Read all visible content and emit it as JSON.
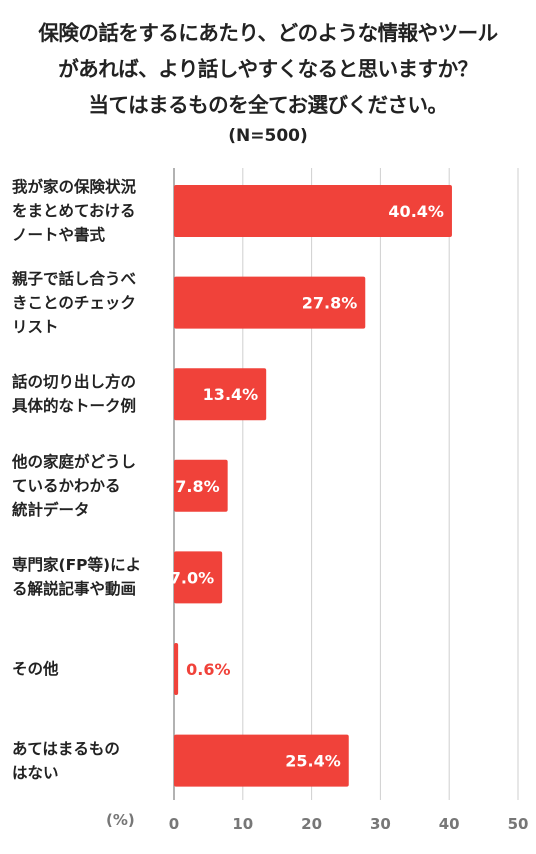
{
  "title_lines": [
    "保険の話をするにあたり、どのような情報やツール",
    "があれば、より話しやすくなると思いますか？",
    "当てはまるものを全てお選びください。"
  ],
  "subtitle": "(N=500)",
  "unit_label": "(%)",
  "colors": {
    "bar": "#f0423a",
    "grid": "#cfcfcf",
    "axis_text": "#777777"
  },
  "chart_data": {
    "type": "bar",
    "orientation": "horizontal",
    "categories": [
      "我が家の保険状況をまとめておけるノートや書式",
      "親子で話し合うべきことのチェックリスト",
      "話の切り出し方の具体的なトーク例",
      "他の家庭がどうしているかわかる統計データ",
      "専門家(FP等)による解説記事や動画",
      "その他",
      "あてはまるものはない"
    ],
    "category_lines": [
      [
        "我が家の保険状況",
        "をまとめておける",
        "ノートや書式"
      ],
      [
        "親子で話し合うべ",
        "きことのチェック",
        "リスト"
      ],
      [
        "話の切り出し方の",
        "具体的なトーク例"
      ],
      [
        "他の家庭がどうし",
        "ているかわかる",
        "統計データ"
      ],
      [
        "専門家(FP等)によ",
        "る解説記事や動画"
      ],
      [
        "その他"
      ],
      [
        "あてはまるもの",
        "はない"
      ]
    ],
    "values": [
      40.4,
      27.8,
      13.4,
      7.8,
      7.0,
      0.6,
      25.4
    ],
    "value_labels": [
      "40.4%",
      "27.8%",
      "13.4%",
      "7.8%",
      "7.0%",
      "0.6%",
      "25.4%"
    ],
    "xlim": [
      0,
      50
    ],
    "xticks": [
      "0",
      "10",
      "20",
      "30",
      "40",
      "50"
    ],
    "grid": true
  }
}
